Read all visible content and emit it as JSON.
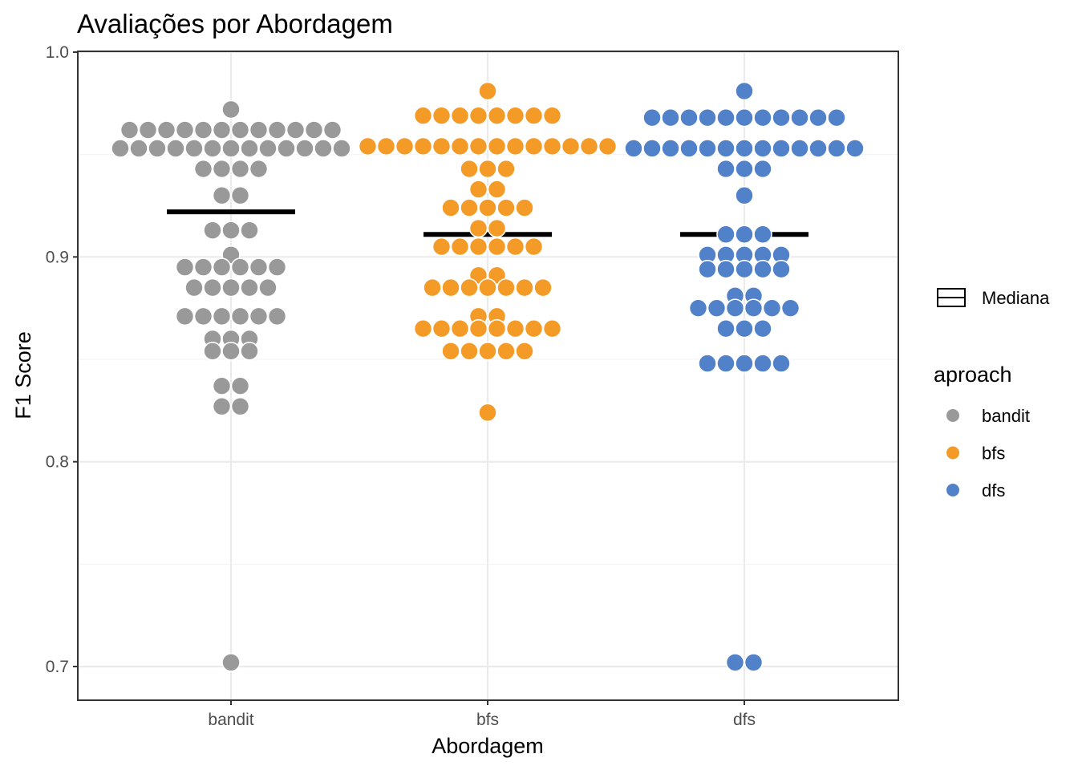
{
  "chart_data": {
    "type": "scatter",
    "subtype": "beeswarm-dotplot",
    "title": "Avaliações por Abordagem",
    "xlabel": "Abordagem",
    "ylabel": "F1 Score",
    "ylim": [
      0.683,
      1.0
    ],
    "yticks": [
      0.7,
      0.8,
      0.9,
      1.0
    ],
    "ytick_labels": [
      "0.7",
      "0.8",
      "0.9",
      "1.0"
    ],
    "categories": [
      "bandit",
      "bfs",
      "dfs"
    ],
    "grid": true,
    "legend_position": "right",
    "median_legend_label": "Mediana",
    "color_legend_title": "aproach",
    "series": [
      {
        "name": "bandit",
        "color": "#999999",
        "median": 0.922,
        "groups": [
          {
            "y": 0.972,
            "count": 1
          },
          {
            "y": 0.962,
            "count": 12
          },
          {
            "y": 0.953,
            "count": 13
          },
          {
            "y": 0.943,
            "count": 4
          },
          {
            "y": 0.93,
            "count": 2
          },
          {
            "y": 0.913,
            "count": 3
          },
          {
            "y": 0.901,
            "count": 1
          },
          {
            "y": 0.895,
            "count": 6
          },
          {
            "y": 0.885,
            "count": 5
          },
          {
            "y": 0.871,
            "count": 6
          },
          {
            "y": 0.86,
            "count": 3
          },
          {
            "y": 0.854,
            "count": 3
          },
          {
            "y": 0.837,
            "count": 2
          },
          {
            "y": 0.827,
            "count": 2
          },
          {
            "y": 0.702,
            "count": 1
          }
        ]
      },
      {
        "name": "bfs",
        "color": "#F39A27",
        "median": 0.911,
        "groups": [
          {
            "y": 0.981,
            "count": 1
          },
          {
            "y": 0.969,
            "count": 8
          },
          {
            "y": 0.954,
            "count": 14
          },
          {
            "y": 0.943,
            "count": 3
          },
          {
            "y": 0.933,
            "count": 2
          },
          {
            "y": 0.924,
            "count": 5
          },
          {
            "y": 0.914,
            "count": 2
          },
          {
            "y": 0.905,
            "count": 6
          },
          {
            "y": 0.891,
            "count": 2
          },
          {
            "y": 0.885,
            "count": 7
          },
          {
            "y": 0.871,
            "count": 2
          },
          {
            "y": 0.865,
            "count": 8
          },
          {
            "y": 0.854,
            "count": 5
          },
          {
            "y": 0.824,
            "count": 1
          }
        ]
      },
      {
        "name": "dfs",
        "color": "#5181C9",
        "median": 0.911,
        "groups": [
          {
            "y": 0.981,
            "count": 1
          },
          {
            "y": 0.968,
            "count": 11
          },
          {
            "y": 0.953,
            "count": 13
          },
          {
            "y": 0.943,
            "count": 3
          },
          {
            "y": 0.93,
            "count": 1
          },
          {
            "y": 0.911,
            "count": 3
          },
          {
            "y": 0.901,
            "count": 5
          },
          {
            "y": 0.894,
            "count": 5
          },
          {
            "y": 0.881,
            "count": 2
          },
          {
            "y": 0.875,
            "count": 6
          },
          {
            "y": 0.865,
            "count": 3
          },
          {
            "y": 0.848,
            "count": 5
          },
          {
            "y": 0.702,
            "count": 2
          }
        ]
      }
    ]
  }
}
